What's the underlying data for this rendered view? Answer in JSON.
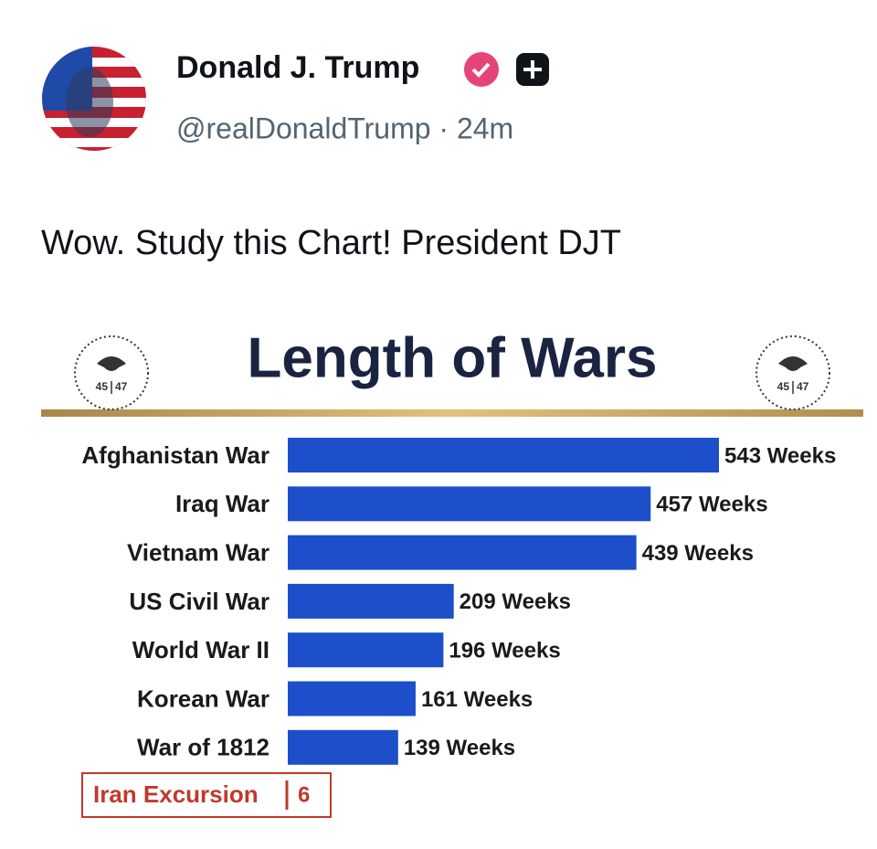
{
  "post": {
    "name": "Donald J. Trump",
    "meta": "@realDonaldTrump · 24m",
    "text": "Wow. Study this Chart! President DJT"
  },
  "seal": [
    "45",
    "47"
  ],
  "chart_data": {
    "type": "bar",
    "orientation": "horizontal",
    "title": "Length of Wars",
    "categories": [
      "Afghanistan War",
      "Iraq War",
      "Vietnam War",
      "US Civil War",
      "World War II",
      "Korean War",
      "War of 1812"
    ],
    "values": [
      543,
      457,
      439,
      209,
      196,
      161,
      139
    ],
    "value_labels": [
      "543 Weeks",
      "457 Weeks",
      "439 Weeks",
      "209 Weeks",
      "196 Weeks",
      "161 Weeks",
      "139 Weeks"
    ],
    "color": "#1c4fc9"
  },
  "callout": {
    "label": "Iran Excursion",
    "value": 6,
    "color": "#c0392b"
  }
}
